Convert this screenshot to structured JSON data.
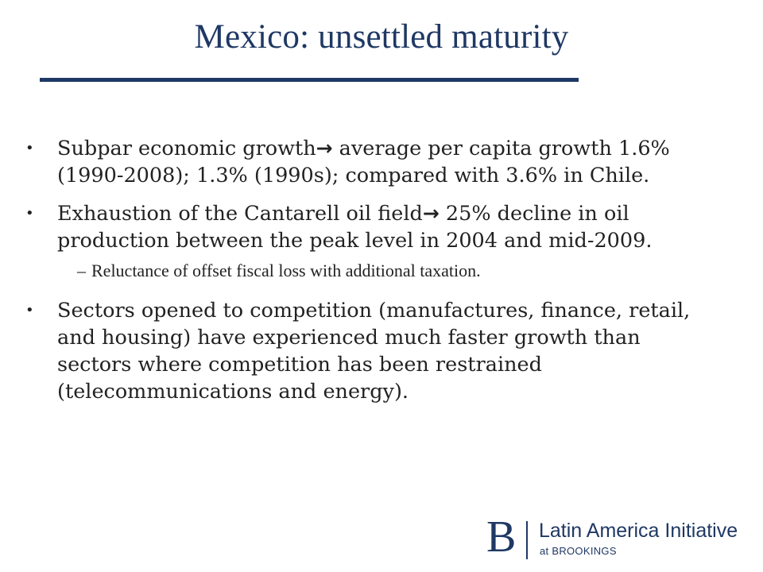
{
  "slide": {
    "title": "Mexico: unsettled maturity",
    "bullet_marker": "•",
    "dash_marker": "–",
    "arrow": "→",
    "bullets": [
      {
        "lead": "Subpar economic growth",
        "rest": " average per capita growth 1.6% (1990-2008); 1.3% (1990s); compared with 3.6% in Chile."
      },
      {
        "lead": "Exhaustion of the Cantarell oil field",
        "rest": " 25% decline in oil production between the peak level in 2004 and mid-2009.",
        "sub": "Reluctance of offset fiscal loss with additional taxation."
      },
      {
        "text": "Sectors opened to competition (manufactures, finance, retail, and housing) have experienced much faster growth than sectors where competition has been restrained (telecommunications and energy)."
      }
    ]
  },
  "logo": {
    "mark": "B",
    "name": "Latin America Initiative",
    "sub_prefix": "at ",
    "sub_org": "BROOKINGS"
  },
  "colors": {
    "title": "#1f3864",
    "body_text": "#222222",
    "background": "#ffffff"
  }
}
